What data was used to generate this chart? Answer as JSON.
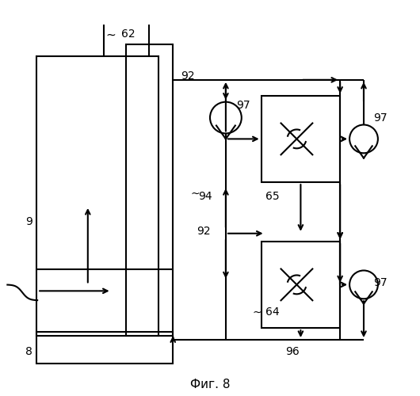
{
  "title": "Фиг. 8",
  "bg_color": "#ffffff",
  "line_color": "#000000",
  "lw": 1.5,
  "fig_w": 5.3,
  "fig_h": 5.0,
  "dpi": 100
}
